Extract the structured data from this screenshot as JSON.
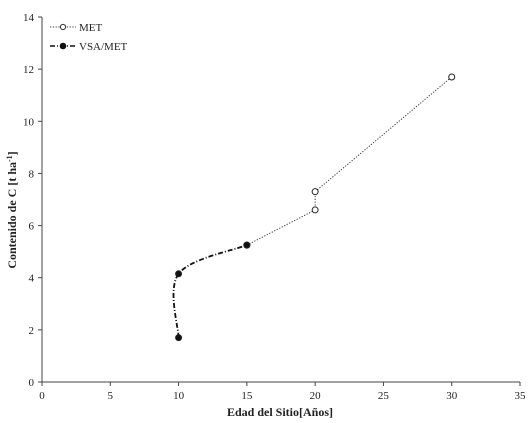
{
  "chart_data": {
    "type": "line",
    "title": "",
    "xlabel": "Edad del Sitio[Años]",
    "ylabel_main": "Contenido de C [t ha",
    "ylabel_sup": "-1",
    "ylabel_end": "]",
    "xlim": [
      0,
      35
    ],
    "ylim": [
      0,
      14
    ],
    "xticks": [
      0,
      5,
      10,
      15,
      20,
      25,
      30,
      35
    ],
    "yticks": [
      0,
      2,
      4,
      6,
      8,
      10,
      12,
      14
    ],
    "grid": false,
    "legend_position": "top-left",
    "series": [
      {
        "name": "MET",
        "style": "dotted",
        "marker": "open-circle",
        "color": "#333333",
        "points": [
          [
            15,
            5.25
          ],
          [
            20,
            6.6
          ],
          [
            20,
            7.3
          ],
          [
            30,
            11.7
          ]
        ]
      },
      {
        "name": "VSA/MET",
        "style": "dash-dot",
        "marker": "filled-circle",
        "color": "#111111",
        "points": [
          [
            10,
            1.7
          ],
          [
            10,
            4.15
          ],
          [
            15,
            5.25
          ]
        ]
      }
    ]
  }
}
